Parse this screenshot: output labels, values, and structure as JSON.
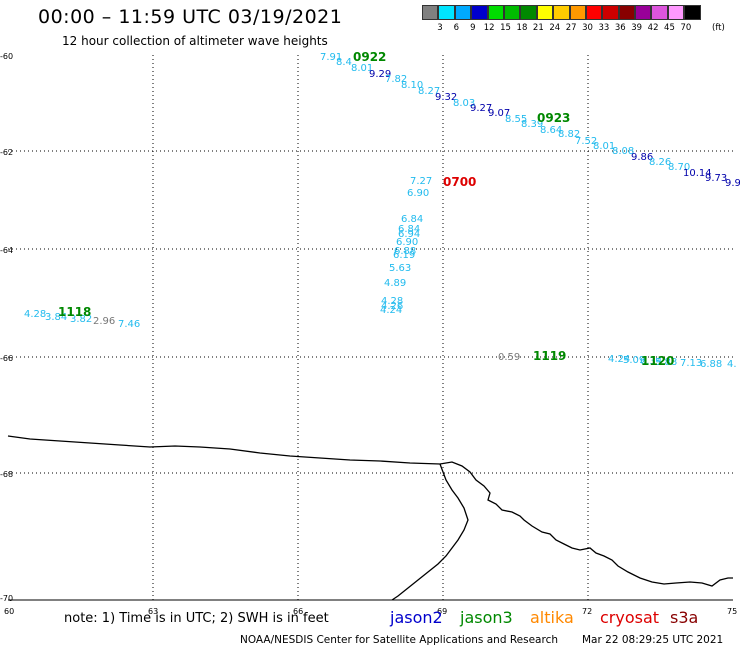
{
  "header": {
    "title": "00:00 – 11:59 UTC 03/19/2021",
    "subtitle": "12 hour collection of altimeter wave heights"
  },
  "legend": {
    "unit": "(ft)",
    "bins": [
      {
        "label": "3",
        "color": "#808080"
      },
      {
        "label": "6",
        "color": "#00e5ff"
      },
      {
        "label": "9",
        "color": "#00aaff"
      },
      {
        "label": "12",
        "color": "#0000cc"
      },
      {
        "label": "15",
        "color": "#00dd00"
      },
      {
        "label": "18",
        "color": "#00bb00"
      },
      {
        "label": "21",
        "color": "#008800"
      },
      {
        "label": "24",
        "color": "#ffff00"
      },
      {
        "label": "27",
        "color": "#ffcc00"
      },
      {
        "label": "30",
        "color": "#ff9900"
      },
      {
        "label": "33",
        "color": "#ff0000"
      },
      {
        "label": "36",
        "color": "#cc0000"
      },
      {
        "label": "39",
        "color": "#880000"
      },
      {
        "label": "42",
        "color": "#990099"
      },
      {
        "label": "45",
        "color": "#dd55dd"
      },
      {
        "label": "70",
        "color": "#ff99ff"
      },
      {
        "label": "",
        "color": "#000000"
      }
    ]
  },
  "axes": {
    "lat_labels": [
      "-60",
      "-62",
      "-64",
      "-66",
      "-68",
      "-70"
    ],
    "lon_labels": [
      "60",
      "63",
      "66",
      "69",
      "72",
      "75"
    ]
  },
  "points": {
    "pass_0922": [
      {
        "t": "7.91",
        "c": "#22bbee"
      },
      {
        "t": "8.4",
        "c": "#22bbee"
      },
      {
        "t": "8.01",
        "c": "#22bbee"
      },
      {
        "t": "9.29",
        "c": "#0000aa"
      },
      {
        "t": "7.82",
        "c": "#22bbee"
      },
      {
        "t": "8.10",
        "c": "#22bbee"
      },
      {
        "t": "8.27",
        "c": "#22bbee"
      },
      {
        "t": "9.32",
        "c": "#0000aa"
      },
      {
        "t": "8.03",
        "c": "#22bbee"
      },
      {
        "t": "9.27",
        "c": "#0000aa"
      },
      {
        "t": "9.07",
        "c": "#0000aa"
      },
      {
        "t": "8.55",
        "c": "#22bbee"
      },
      {
        "t": "8.39",
        "c": "#22bbee"
      },
      {
        "t": "8.64",
        "c": "#22bbee"
      },
      {
        "t": "8.82",
        "c": "#22bbee"
      },
      {
        "t": "7.52",
        "c": "#22bbee"
      },
      {
        "t": "8.01",
        "c": "#22bbee"
      },
      {
        "t": "8.08",
        "c": "#22bbee"
      },
      {
        "t": "9.86",
        "c": "#0000aa"
      },
      {
        "t": "8.26",
        "c": "#22bbee"
      },
      {
        "t": "8.70",
        "c": "#22bbee"
      },
      {
        "t": "10.14",
        "c": "#0000aa"
      },
      {
        "t": "9.73",
        "c": "#0000aa"
      },
      {
        "t": "9.9",
        "c": "#0000aa"
      }
    ],
    "pass_0700": [
      {
        "t": "7.27",
        "c": "#22bbee"
      },
      {
        "t": "6.90",
        "c": "#22bbee"
      },
      {
        "t": "6.84",
        "c": "#22bbee"
      },
      {
        "t": "6.84",
        "c": "#22bbee"
      },
      {
        "t": "6.94",
        "c": "#22bbee"
      },
      {
        "t": "6.90",
        "c": "#22bbee"
      },
      {
        "t": "6.88",
        "c": "#22bbee"
      },
      {
        "t": "6.19",
        "c": "#22bbee"
      },
      {
        "t": "5.63",
        "c": "#22bbee"
      },
      {
        "t": "4.89",
        "c": "#22bbee"
      },
      {
        "t": "4.28",
        "c": "#22bbee"
      },
      {
        "t": "4.26",
        "c": "#22bbee"
      },
      {
        "t": "4.24",
        "c": "#22bbee"
      }
    ],
    "pass_1118": [
      {
        "t": "4.28",
        "c": "#22bbee"
      },
      {
        "t": "3.84",
        "c": "#22bbee"
      },
      {
        "t": "3.82",
        "c": "#22bbee"
      },
      {
        "t": "2.96",
        "c": "#777777"
      },
      {
        "t": "7.46",
        "c": "#22bbee"
      }
    ],
    "pass_1119": [
      {
        "t": "0.59",
        "c": "#777777"
      },
      {
        "t": "4.24",
        "c": "#22bbee"
      },
      {
        "t": "5.09",
        "c": "#22bbee"
      },
      {
        "t": "6.34",
        "c": "#22bbee"
      },
      {
        "t": "5.88",
        "c": "#22bbee"
      },
      {
        "t": "7.13",
        "c": "#22bbee"
      },
      {
        "t": "6.88",
        "c": "#22bbee"
      },
      {
        "t": "4.",
        "c": "#22bbee"
      }
    ],
    "time_labels": [
      {
        "t": "0922",
        "c": "#008800"
      },
      {
        "t": "0923",
        "c": "#008800"
      },
      {
        "t": "0700",
        "c": "#dd0000"
      },
      {
        "t": "1118",
        "c": "#008800"
      },
      {
        "t": "1119",
        "c": "#008800"
      },
      {
        "t": "1120",
        "c": "#008800"
      }
    ]
  },
  "footer": {
    "note": "note: 1) Time is in UTC; 2) SWH is in feet",
    "satellites": [
      {
        "name": "jason2",
        "color": "#0000cc"
      },
      {
        "name": "jason3",
        "color": "#008800"
      },
      {
        "name": "altika",
        "color": "#ff8800"
      },
      {
        "name": "cryosat",
        "color": "#dd0000"
      },
      {
        "name": "s3a",
        "color": "#880000"
      }
    ],
    "credit": "NOAA/NESDIS Center for Satellite Applications and Research",
    "timestamp": "Mar 22 08:29:25 UTC 2021"
  }
}
